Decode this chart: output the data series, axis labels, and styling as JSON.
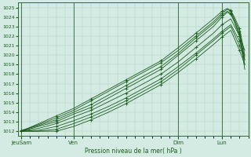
{
  "ylabel": "Pression niveau de la mer( hPa )",
  "ylim": [
    1011.5,
    1025.5
  ],
  "yticks": [
    1012,
    1013,
    1014,
    1015,
    1016,
    1017,
    1018,
    1019,
    1020,
    1021,
    1022,
    1023,
    1024,
    1025
  ],
  "xtick_labels": [
    "JeuSam",
    "Ven",
    "Dim",
    "Lun"
  ],
  "xtick_positions": [
    0,
    30,
    90,
    115
  ],
  "xlim": [
    -2,
    130
  ],
  "bg_color": "#d4ebe4",
  "grid_color": "#aaccbb",
  "line_color": "#1a5c1a",
  "series": [
    {
      "x": [
        0,
        10,
        20,
        30,
        40,
        50,
        60,
        70,
        80,
        90,
        100,
        110,
        115,
        118,
        120,
        122,
        125,
        128
      ],
      "y": [
        1012.0,
        1012.5,
        1013.0,
        1013.8,
        1014.5,
        1015.5,
        1016.5,
        1017.5,
        1018.5,
        1020.0,
        1021.5,
        1023.0,
        1024.0,
        1024.5,
        1024.3,
        1023.5,
        1022.0,
        1018.5
      ]
    },
    {
      "x": [
        0,
        10,
        20,
        30,
        40,
        50,
        60,
        70,
        80,
        90,
        100,
        110,
        115,
        118,
        120,
        122,
        125,
        128
      ],
      "y": [
        1012.1,
        1012.6,
        1013.2,
        1014.0,
        1014.8,
        1015.8,
        1016.8,
        1017.8,
        1018.8,
        1020.2,
        1021.8,
        1023.3,
        1024.2,
        1024.6,
        1024.4,
        1023.6,
        1022.2,
        1019.0
      ]
    },
    {
      "x": [
        0,
        10,
        20,
        30,
        40,
        50,
        60,
        70,
        80,
        90,
        100,
        110,
        115,
        118,
        120,
        122,
        125,
        128
      ],
      "y": [
        1012.0,
        1012.7,
        1013.4,
        1014.2,
        1015.2,
        1016.2,
        1017.2,
        1018.2,
        1019.2,
        1020.5,
        1022.0,
        1023.5,
        1024.4,
        1024.8,
        1024.6,
        1023.8,
        1022.5,
        1019.5
      ]
    },
    {
      "x": [
        0,
        10,
        20,
        30,
        40,
        50,
        60,
        70,
        80,
        90,
        100,
        110,
        115,
        118,
        120,
        122,
        125,
        128
      ],
      "y": [
        1012.0,
        1012.8,
        1013.6,
        1014.4,
        1015.4,
        1016.4,
        1017.4,
        1018.4,
        1019.4,
        1020.8,
        1022.3,
        1023.8,
        1024.6,
        1024.9,
        1024.7,
        1024.0,
        1022.8,
        1020.0
      ]
    },
    {
      "x": [
        0,
        10,
        20,
        30,
        40,
        50,
        60,
        70,
        80,
        90,
        100,
        110,
        115,
        120,
        125,
        128
      ],
      "y": [
        1012.0,
        1012.3,
        1012.8,
        1013.5,
        1014.2,
        1015.1,
        1016.0,
        1017.0,
        1018.0,
        1019.3,
        1020.8,
        1022.3,
        1023.2,
        1023.8,
        1022.0,
        1020.5
      ]
    },
    {
      "x": [
        0,
        10,
        20,
        30,
        40,
        50,
        60,
        70,
        80,
        90,
        100,
        110,
        115,
        120,
        125,
        128
      ],
      "y": [
        1012.0,
        1012.1,
        1012.5,
        1013.1,
        1013.8,
        1014.6,
        1015.5,
        1016.5,
        1017.5,
        1018.8,
        1020.2,
        1021.7,
        1022.5,
        1023.2,
        1021.5,
        1019.8
      ]
    },
    {
      "x": [
        0,
        10,
        20,
        30,
        40,
        50,
        60,
        70,
        80,
        90,
        100,
        110,
        115,
        120,
        125,
        128
      ],
      "y": [
        1012.0,
        1012.0,
        1012.2,
        1012.8,
        1013.5,
        1014.3,
        1015.2,
        1016.2,
        1017.2,
        1018.5,
        1020.0,
        1021.5,
        1022.3,
        1023.0,
        1021.0,
        1019.5
      ]
    },
    {
      "x": [
        0,
        10,
        20,
        30,
        40,
        50,
        60,
        70,
        80,
        90,
        100,
        110,
        115,
        120,
        125,
        128
      ],
      "y": [
        1012.0,
        1012.0,
        1012.0,
        1012.5,
        1013.2,
        1014.0,
        1014.9,
        1015.9,
        1016.9,
        1018.2,
        1019.6,
        1021.1,
        1021.9,
        1022.6,
        1020.5,
        1019.0
      ]
    }
  ]
}
